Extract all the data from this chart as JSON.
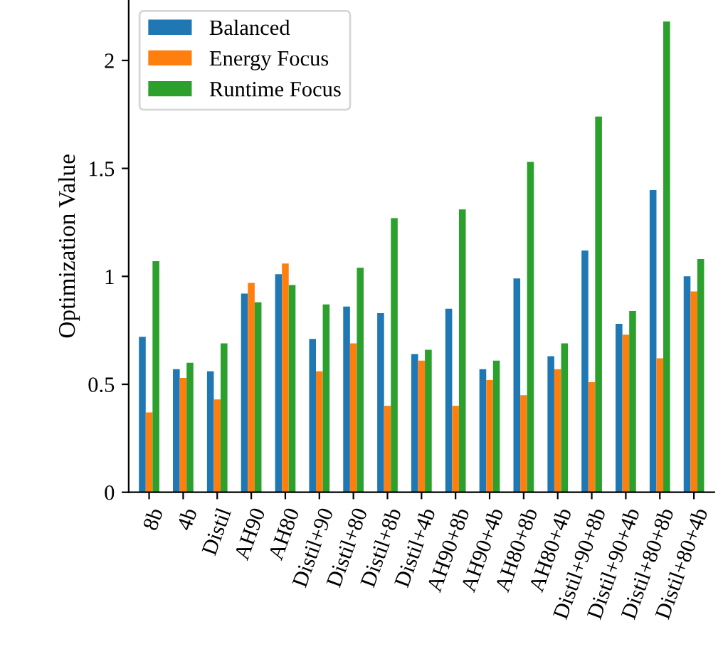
{
  "chart_data": {
    "type": "bar",
    "ylabel": "Optimization Value",
    "categories": [
      "8b",
      "4b",
      "Distil",
      "AH90",
      "AH80",
      "Distil+90",
      "Distil+80",
      "Distil+8b",
      "Distil+4b",
      "AH90+8b",
      "AH90+4b",
      "AH80+8b",
      "AH80+4b",
      "Distil+90+8b",
      "Distil+90+4b",
      "Distil+80+8b",
      "Distil+80+4b"
    ],
    "series": [
      {
        "name": "Balanced",
        "color": "#1f77b4",
        "values": [
          0.72,
          0.57,
          0.56,
          0.92,
          1.01,
          0.71,
          0.86,
          0.83,
          0.64,
          0.85,
          0.57,
          0.99,
          0.63,
          1.12,
          0.78,
          1.4,
          1.0
        ]
      },
      {
        "name": "Energy Focus",
        "color": "#ff7f0e",
        "values": [
          0.37,
          0.53,
          0.43,
          0.97,
          1.06,
          0.56,
          0.69,
          0.4,
          0.61,
          0.4,
          0.52,
          0.45,
          0.57,
          0.51,
          0.73,
          0.62,
          0.93
        ]
      },
      {
        "name": "Runtime Focus",
        "color": "#2ca02c",
        "values": [
          1.07,
          0.6,
          0.69,
          0.88,
          0.96,
          0.87,
          1.04,
          1.27,
          0.66,
          1.31,
          0.61,
          1.53,
          0.69,
          1.74,
          0.84,
          2.18,
          1.08
        ]
      }
    ],
    "ylim": [
      0,
      2.28
    ],
    "yticks": [
      0,
      0.5,
      1,
      1.5,
      2
    ],
    "legend": "top left",
    "grid": false
  }
}
